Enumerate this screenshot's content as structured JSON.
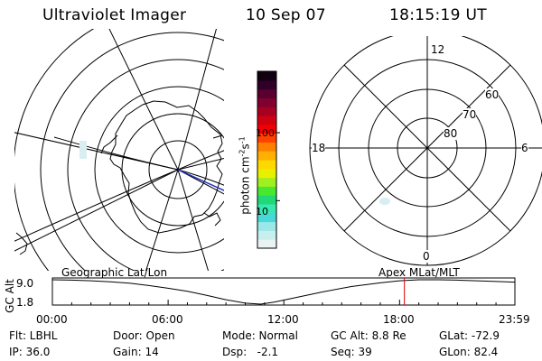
{
  "header": {
    "instrument": "Ultraviolet Imager",
    "date": "10 Sep 07",
    "time": "18:15:19 UT"
  },
  "colorbar": {
    "unit_main": "photon cm",
    "unit_exp1": "-2",
    "unit_s": "s",
    "unit_exp2": "-1",
    "tick_100": "100",
    "tick_10": "10",
    "colors": [
      "#e8f4f4",
      "#c8eeee",
      "#9ce8e8",
      "#48d8d8",
      "#38e8b0",
      "#20d878",
      "#48e830",
      "#a0f020",
      "#e8f000",
      "#ffd800",
      "#ffb000",
      "#ff8000",
      "#ff4000",
      "#f00000",
      "#d00010",
      "#a80020",
      "#800030",
      "#580030",
      "#300028",
      "#100010"
    ],
    "ticks": [
      {
        "value": 100
      },
      {
        "value": 10
      }
    ],
    "range": [
      2,
      800
    ],
    "scale": "log"
  },
  "mlt_plot": {
    "label_12": "12",
    "label_18": "18",
    "label_6": "6",
    "label_0": "0",
    "label_60": "60",
    "label_70": "70",
    "label_80": "80"
  },
  "timeline": {
    "title_left": "Geographic Lat/Lon",
    "title_right": "Apex MLat/MLT",
    "y_label": "GC Alt",
    "y_max": "9.0",
    "y_min": "1.8",
    "x_ticks": [
      "00:00",
      "06:00",
      "12:00",
      "18:00",
      "23:59"
    ],
    "marker_color": "#e00000",
    "chart_data": {
      "type": "line",
      "x_hours": [
        0,
        1,
        2,
        3,
        4,
        5,
        6,
        7,
        8,
        9,
        10,
        10.8,
        11.5,
        12.5,
        14,
        15.5,
        17,
        18,
        19,
        20,
        21,
        22,
        23,
        23.98
      ],
      "y_values": [
        9.0,
        8.9,
        8.7,
        8.4,
        8.0,
        7.3,
        6.5,
        5.6,
        4.4,
        3.1,
        2.1,
        1.8,
        2.4,
        3.6,
        5.4,
        7.0,
        8.1,
        8.7,
        9.0,
        9.0,
        8.9,
        8.7,
        8.5,
        8.3
      ],
      "xlim": [
        0,
        23.98
      ],
      "ylim": [
        1.8,
        9.0
      ],
      "current_time_hours": 18.25
    }
  },
  "status": {
    "flt": "Flt: LBHL",
    "ip": "IP: 36.0",
    "door": "Door: Open",
    "gain": "Gain: 14",
    "mode": "Mode: Normal",
    "dsp_label": "Dsp:",
    "dsp_value": "-2.1",
    "gc_alt": "GC Alt: 8.8 Re",
    "seq": "Seq: 39",
    "glat": "GLat: -72.9",
    "glon": "GLon: 82.4"
  }
}
